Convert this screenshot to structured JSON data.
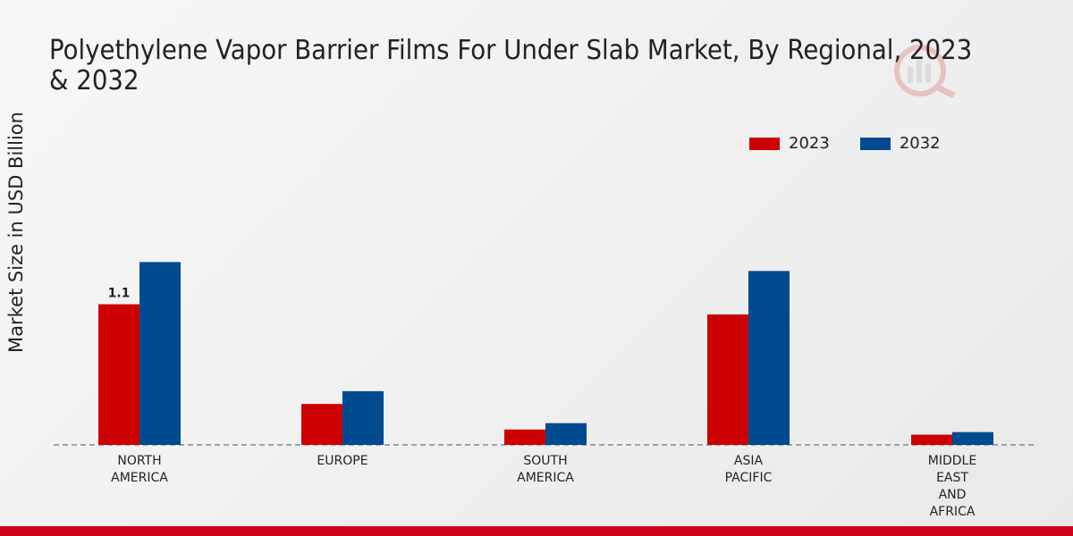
{
  "title": "Polyethylene Vapor Barrier Films For Under Slab Market, By Regional, 2023 & 2032",
  "colors": {
    "2023": "#cc0000",
    "2032": "#004a8f",
    "accent": "#d0021b"
  },
  "chart_data": {
    "type": "bar",
    "title": "Polyethylene Vapor Barrier Films For Under Slab Market, By Regional, 2023 & 2032",
    "xlabel": "",
    "ylabel": "Market Size in USD Billion",
    "categories": [
      [
        "NORTH",
        "AMERICA"
      ],
      [
        "EUROPE"
      ],
      [
        "SOUTH",
        "AMERICA"
      ],
      [
        "ASIA",
        "PACIFIC"
      ],
      [
        "MIDDLE",
        "EAST",
        "AND",
        "AFRICA"
      ]
    ],
    "series": [
      {
        "name": "2023",
        "values": [
          1.1,
          0.32,
          0.12,
          1.02,
          0.08
        ]
      },
      {
        "name": "2032",
        "values": [
          1.43,
          0.42,
          0.17,
          1.36,
          0.1
        ]
      }
    ],
    "data_labels": [
      {
        "series": 0,
        "index": 0,
        "text": "1.1"
      }
    ],
    "ylim": [
      0,
      3.2
    ],
    "grid": false,
    "legend": "top-right"
  }
}
